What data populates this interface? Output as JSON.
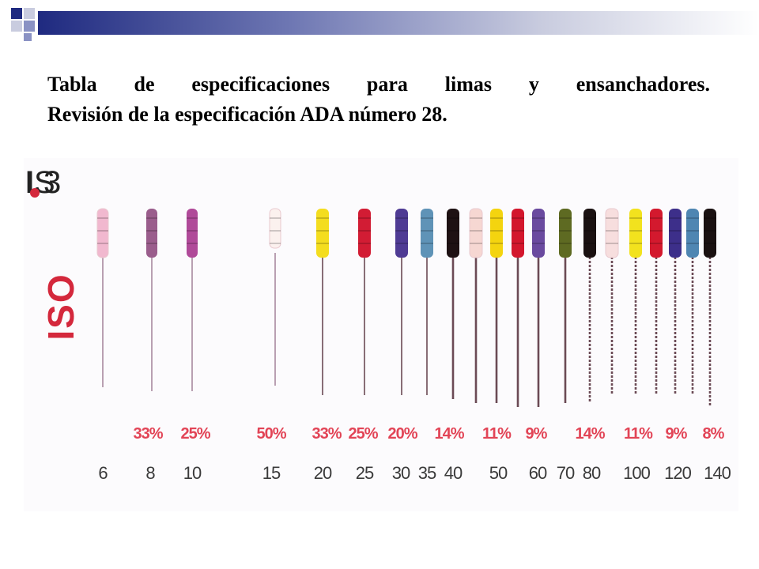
{
  "slide": {
    "title_line1": "Tabla de especificaciones para limas y ensanchadores.",
    "title_line2": "Revisión de la especificación ADA número 28."
  },
  "colors": {
    "header_dark": "#1f2a80",
    "header_light": "#c9ccdf",
    "iso_red": "#d4283c",
    "percentage_red": "#e24456"
  },
  "figure": {
    "iso_label": "ISO",
    "logo": "ISO logo",
    "percentages": [
      "33%",
      "25%",
      "50%",
      "33%",
      "25%",
      "20%",
      "14%",
      "11%",
      "9%",
      "14%",
      "11%",
      "9%",
      "8%"
    ],
    "sizes": [
      "6",
      "8",
      "10",
      "15",
      "20",
      "25",
      "30",
      "35",
      "40",
      "50",
      "60",
      "70",
      "80",
      "100",
      "120",
      "140"
    ],
    "instruments": [
      {
        "handle_color": "#f1b8cf"
      },
      {
        "handle_color": "#9a5d8c"
      },
      {
        "handle_color": "#b04a99"
      },
      {
        "handle_color": "#fbf1ee"
      },
      {
        "handle_color": "#f4dd1f"
      },
      {
        "handle_color": "#d21c34"
      },
      {
        "handle_color": "#4f3b94"
      },
      {
        "handle_color": "#5f93b7"
      },
      {
        "handle_color": "#1e1113"
      },
      {
        "handle_color": "#f6d7d2"
      },
      {
        "handle_color": "#f4d40f"
      },
      {
        "handle_color": "#d3172d"
      },
      {
        "handle_color": "#6a4a9f"
      },
      {
        "handle_color": "#5e6a22"
      },
      {
        "handle_color": "#1a1111"
      },
      {
        "handle_color": "#f7dede"
      },
      {
        "handle_color": "#f2e21e"
      },
      {
        "handle_color": "#d3192e"
      },
      {
        "handle_color": "#3d2f8a"
      },
      {
        "handle_color": "#4f86b2"
      },
      {
        "handle_color": "#1a1111"
      }
    ]
  }
}
